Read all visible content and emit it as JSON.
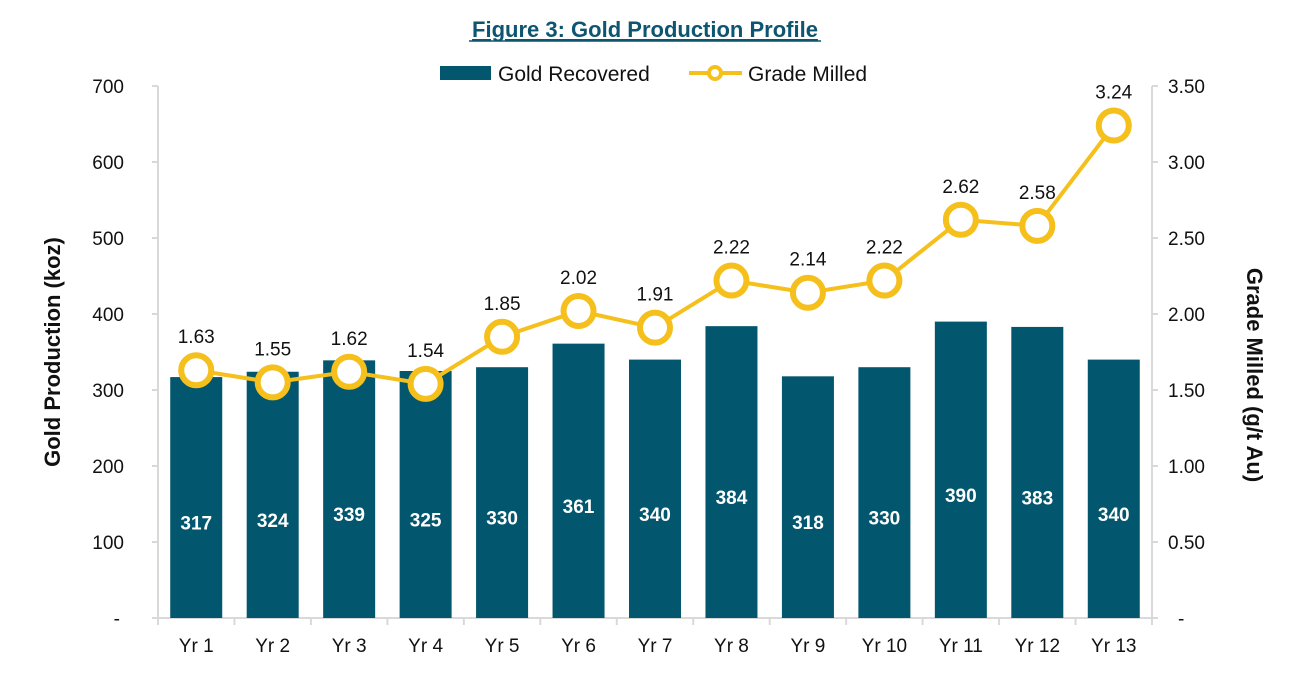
{
  "chart_data": {
    "type": "bar+line",
    "title": "Figure 3: Gold Production Profile",
    "categories": [
      "Yr 1",
      "Yr 2",
      "Yr 3",
      "Yr 4",
      "Yr 5",
      "Yr 6",
      "Yr 7",
      "Yr 8",
      "Yr 9",
      "Yr 10",
      "Yr 11",
      "Yr 12",
      "Yr 13"
    ],
    "series": [
      {
        "name": "Gold Recovered",
        "type": "bar",
        "axis": "left",
        "color": "#02566e",
        "values": [
          317,
          324,
          339,
          325,
          330,
          361,
          340,
          384,
          318,
          330,
          390,
          383,
          340
        ]
      },
      {
        "name": "Grade Milled",
        "type": "line",
        "axis": "right",
        "color": "#f5bf1c",
        "values": [
          1.63,
          1.55,
          1.62,
          1.54,
          1.85,
          2.02,
          1.91,
          2.22,
          2.14,
          2.22,
          2.62,
          2.58,
          3.24
        ]
      }
    ],
    "ylabel": "Gold Production (koz)",
    "y2label": "Grade Milled (g/t Au)",
    "ylim": [
      0,
      700
    ],
    "y2lim": [
      0,
      3.5
    ],
    "yticks": [
      "-",
      "100",
      "200",
      "300",
      "400",
      "500",
      "600",
      "700"
    ],
    "y2ticks": [
      "-",
      "0.50",
      "1.00",
      "1.50",
      "2.00",
      "2.50",
      "3.00",
      "3.50"
    ],
    "grid": false,
    "legend": "top-center",
    "title_color": "#0d5570"
  }
}
